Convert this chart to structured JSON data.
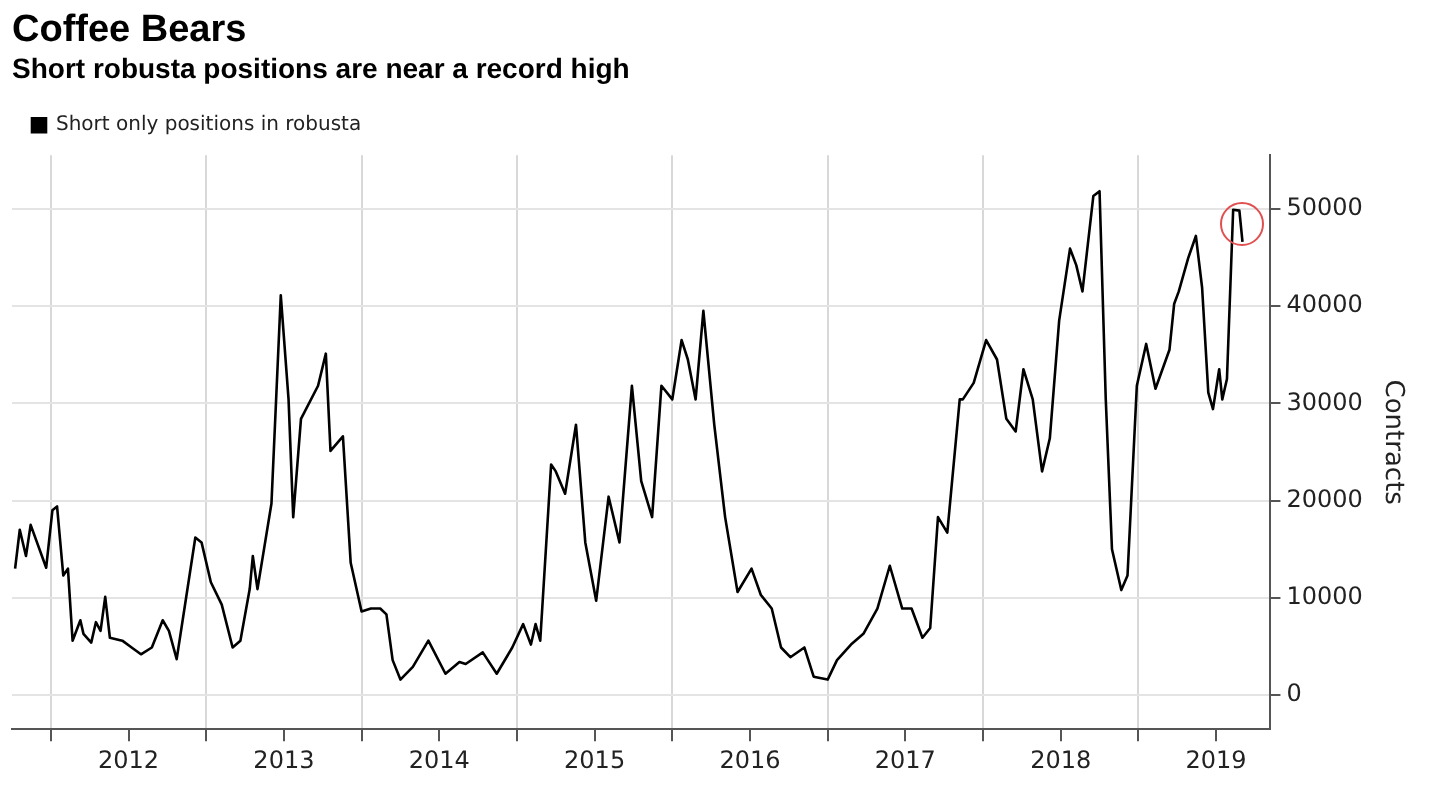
{
  "chart_data": {
    "type": "line",
    "title": "Coffee Bears",
    "subtitle": "Short robusta positions are near a record high",
    "ylabel": "Contracts",
    "series": [
      {
        "name": "Short only positions in robusta",
        "color": "#000000",
        "x": [
          2011.77,
          2011.8,
          2011.84,
          2011.87,
          2011.97,
          2012.01,
          2012.04,
          2012.08,
          2012.11,
          2012.14,
          2012.19,
          2012.21,
          2012.26,
          2012.29,
          2012.32,
          2012.35,
          2012.38,
          2012.46,
          2012.52,
          2012.58,
          2012.65,
          2012.72,
          2012.76,
          2012.81,
          2012.86,
          2012.93,
          2012.97,
          2013.03,
          2013.1,
          2013.17,
          2013.22,
          2013.28,
          2013.3,
          2013.33,
          2013.42,
          2013.48,
          2013.53,
          2013.56,
          2013.61,
          2013.72,
          2013.77,
          2013.8,
          2013.88,
          2013.93,
          2014.0,
          2014.06,
          2014.12,
          2014.16,
          2014.2,
          2014.25,
          2014.33,
          2014.43,
          2014.54,
          2014.63,
          2014.67,
          2014.78,
          2014.87,
          2014.97,
          2015.04,
          2015.09,
          2015.12,
          2015.15,
          2015.22,
          2015.25,
          2015.31,
          2015.38,
          2015.44,
          2015.51,
          2015.59,
          2015.66,
          2015.74,
          2015.8,
          2015.87,
          2015.93,
          2016.0,
          2016.06,
          2016.1,
          2016.15,
          2016.2,
          2016.27,
          2016.34,
          2016.42,
          2016.51,
          2016.57,
          2016.64,
          2016.7,
          2016.76,
          2016.85,
          2016.91,
          2017.0,
          2017.06,
          2017.15,
          2017.23,
          2017.32,
          2017.4,
          2017.48,
          2017.54,
          2017.61,
          2017.66,
          2017.71,
          2017.77,
          2017.85,
          2017.87,
          2017.94,
          2018.02,
          2018.09,
          2018.15,
          2018.21,
          2018.26,
          2018.32,
          2018.38,
          2018.43,
          2018.49,
          2018.56,
          2018.6,
          2018.64,
          2018.71,
          2018.75,
          2018.79,
          2018.83,
          2018.89,
          2018.93,
          2018.99,
          2019.05,
          2019.11,
          2019.2,
          2019.23,
          2019.26,
          2019.32,
          2019.37,
          2019.41,
          2019.45,
          2019.48,
          2019.52,
          2019.54,
          2019.57,
          2019.61,
          2019.65,
          2019.67
        ],
        "values": [
          13000,
          17000,
          14300,
          17500,
          13100,
          19000,
          19400,
          12300,
          13000,
          5600,
          7700,
          6300,
          5400,
          7500,
          6600,
          10100,
          5900,
          5600,
          4900,
          4200,
          4900,
          7700,
          6600,
          3700,
          8900,
          16200,
          15700,
          11600,
          9300,
          4900,
          5600,
          10900,
          14300,
          10900,
          19700,
          41100,
          30400,
          18300,
          28400,
          31800,
          35100,
          25100,
          26600,
          13600,
          8600,
          8900,
          8900,
          8300,
          3600,
          1600,
          2900,
          5600,
          2200,
          3400,
          3200,
          4400,
          2200,
          4900,
          7300,
          5200,
          7300,
          5600,
          23700,
          23000,
          20700,
          27800,
          15700,
          9700,
          20400,
          15700,
          31800,
          22000,
          18300,
          31800,
          30400,
          36500,
          34500,
          30400,
          39500,
          27800,
          18300,
          10600,
          13000,
          10300,
          8900,
          4900,
          3900,
          4900,
          1900,
          1600,
          3600,
          5200,
          6300,
          8900,
          13300,
          8900,
          8900,
          5900,
          6900,
          18300,
          16700,
          30400,
          30400,
          32100,
          36500,
          34500,
          28400,
          27100,
          33500,
          30400,
          23000,
          26400,
          38500,
          45900,
          44200,
          41500,
          51300,
          51800,
          30400,
          15000,
          10800,
          12300,
          31800,
          36100,
          31500,
          35500,
          40200,
          41500,
          44900,
          47200,
          41900,
          31100,
          29400,
          33500,
          30400,
          32500,
          49900,
          49800,
          46600
        ]
      }
    ],
    "xlim": [
      2011.75,
      2019.85
    ],
    "xticks": [
      {
        "value": 2012,
        "label": null
      },
      {
        "value": 2012.5,
        "label": "2012"
      },
      {
        "value": 2013,
        "label": null
      },
      {
        "value": 2013.5,
        "label": "2013"
      },
      {
        "value": 2014,
        "label": null
      },
      {
        "value": 2014.5,
        "label": "2014"
      },
      {
        "value": 2015,
        "label": null
      },
      {
        "value": 2015.5,
        "label": "2015"
      },
      {
        "value": 2016,
        "label": null
      },
      {
        "value": 2016.5,
        "label": "2016"
      },
      {
        "value": 2017,
        "label": null
      },
      {
        "value": 2017.5,
        "label": "2017"
      },
      {
        "value": 2018,
        "label": null
      },
      {
        "value": 2018.5,
        "label": "2018"
      },
      {
        "value": 2019,
        "label": null
      },
      {
        "value": 2019.5,
        "label": "2019"
      }
    ],
    "ylim": [
      -3500,
      55500
    ],
    "yticks": [
      0,
      10000,
      20000,
      30000,
      40000,
      50000
    ],
    "grid": true,
    "legend": "top left",
    "marker": "none",
    "line_style": "solid"
  }
}
